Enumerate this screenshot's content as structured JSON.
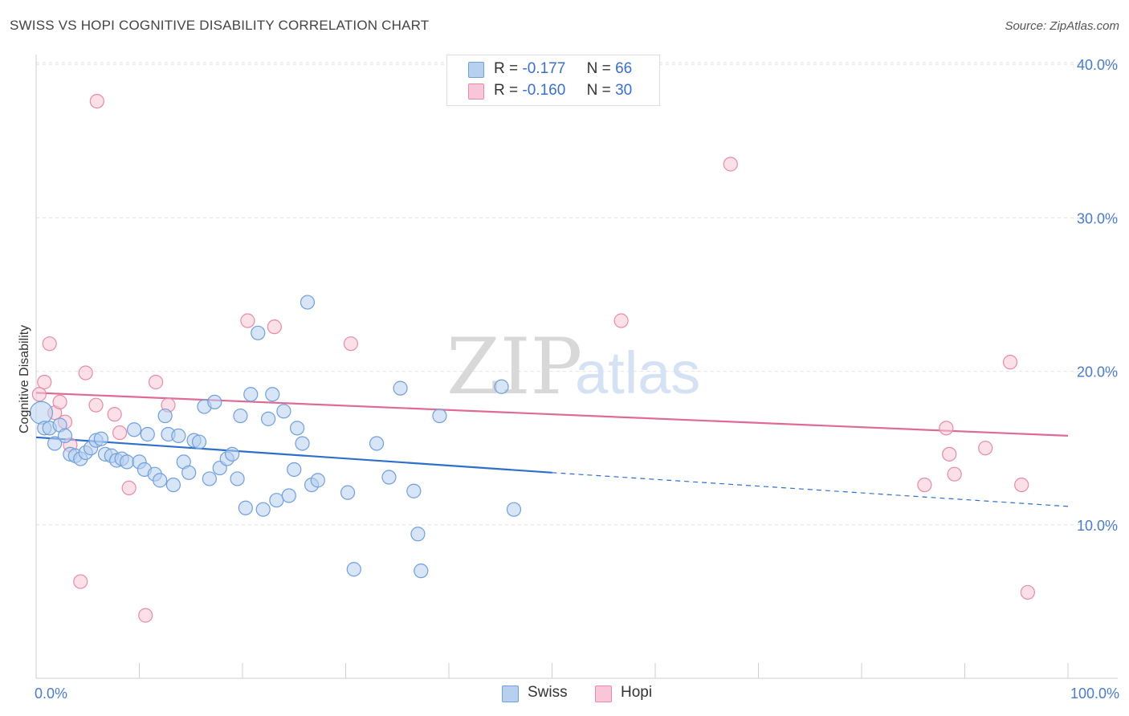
{
  "title": "SWISS VS HOPI COGNITIVE DISABILITY CORRELATION CHART",
  "source": "Source: ZipAtlas.com",
  "watermark": {
    "zip": "ZIP",
    "atlas": "atlas"
  },
  "legend": {
    "rows": [
      {
        "r_label": "R =",
        "r_value": "-0.177",
        "n_label": "N =",
        "n_value": "66"
      },
      {
        "r_label": "R =",
        "r_value": "-0.160",
        "n_label": "N =",
        "n_value": "30"
      }
    ]
  },
  "bottom_legend": {
    "swiss": "Swiss",
    "hopi": "Hopi"
  },
  "colors": {
    "swiss_fill": "#b8d0f0",
    "swiss_stroke": "#6f9fdc",
    "swiss_line": "#2e6fcc",
    "hopi_fill": "#f8c6d6",
    "hopi_stroke": "#e88aaa",
    "hopi_line": "#e06a96",
    "tick_text": "#4a7cc9",
    "grid": "#e2e2e2"
  },
  "chart_data": {
    "type": "scatter",
    "title": "SWISS VS HOPI COGNITIVE DISABILITY CORRELATION CHART",
    "xlabel": "",
    "ylabel": "Cognitive Disability",
    "xlim": [
      0,
      100
    ],
    "ylim": [
      0,
      40
    ],
    "x_tick_labels": [
      "0.0%",
      "100.0%"
    ],
    "y_ticks": [
      10,
      20,
      30,
      40
    ],
    "y_tick_labels": [
      "10.0%",
      "20.0%",
      "30.0%",
      "40.0%"
    ],
    "grid": true,
    "legend_position": "top-center",
    "series": [
      {
        "name": "Swiss",
        "R": -0.177,
        "N": 66,
        "trend": {
          "x": [
            0,
            50.0
          ],
          "y": [
            15.7,
            13.4
          ],
          "dashed_to": [
            100,
            11.2
          ]
        },
        "points": [
          [
            0.5,
            17.3
          ],
          [
            0.8,
            16.3
          ],
          [
            1.3,
            16.3
          ],
          [
            1.8,
            15.3
          ],
          [
            2.3,
            16.5
          ],
          [
            2.8,
            15.8
          ],
          [
            3.3,
            14.6
          ],
          [
            3.8,
            14.5
          ],
          [
            4.3,
            14.3
          ],
          [
            4.8,
            14.7
          ],
          [
            5.3,
            15.0
          ],
          [
            5.8,
            15.5
          ],
          [
            6.3,
            15.6
          ],
          [
            6.7,
            14.6
          ],
          [
            7.3,
            14.5
          ],
          [
            7.8,
            14.2
          ],
          [
            8.3,
            14.3
          ],
          [
            8.8,
            14.1
          ],
          [
            9.5,
            16.2
          ],
          [
            10.0,
            14.1
          ],
          [
            10.5,
            13.6
          ],
          [
            10.8,
            15.9
          ],
          [
            11.5,
            13.3
          ],
          [
            12.0,
            12.9
          ],
          [
            12.5,
            17.1
          ],
          [
            12.8,
            15.9
          ],
          [
            13.3,
            12.6
          ],
          [
            13.8,
            15.8
          ],
          [
            14.3,
            14.1
          ],
          [
            14.8,
            13.4
          ],
          [
            15.3,
            15.5
          ],
          [
            15.8,
            15.4
          ],
          [
            16.3,
            17.7
          ],
          [
            16.8,
            13.0
          ],
          [
            17.3,
            18.0
          ],
          [
            17.8,
            13.7
          ],
          [
            18.5,
            14.3
          ],
          [
            19.0,
            14.6
          ],
          [
            19.5,
            13.0
          ],
          [
            19.8,
            17.1
          ],
          [
            20.3,
            11.1
          ],
          [
            20.8,
            18.5
          ],
          [
            21.5,
            22.5
          ],
          [
            22.0,
            11.0
          ],
          [
            22.5,
            16.9
          ],
          [
            22.9,
            18.5
          ],
          [
            23.3,
            11.6
          ],
          [
            24.0,
            17.4
          ],
          [
            24.5,
            11.9
          ],
          [
            25.0,
            13.6
          ],
          [
            25.3,
            16.3
          ],
          [
            25.8,
            15.3
          ],
          [
            26.3,
            24.5
          ],
          [
            26.7,
            12.6
          ],
          [
            27.3,
            12.9
          ],
          [
            30.2,
            12.1
          ],
          [
            30.8,
            7.1
          ],
          [
            33.0,
            15.3
          ],
          [
            34.2,
            13.1
          ],
          [
            35.3,
            18.9
          ],
          [
            36.6,
            12.2
          ],
          [
            37.0,
            9.4
          ],
          [
            37.3,
            7.0
          ],
          [
            39.1,
            17.1
          ],
          [
            45.1,
            19.0
          ],
          [
            46.3,
            11.0
          ]
        ]
      },
      {
        "name": "Hopi",
        "R": -0.16,
        "N": 30,
        "trend": {
          "x": [
            0,
            100
          ],
          "y": [
            18.6,
            15.8
          ]
        },
        "points": [
          [
            0.3,
            18.5
          ],
          [
            0.8,
            19.3
          ],
          [
            1.3,
            21.8
          ],
          [
            1.8,
            17.3
          ],
          [
            2.3,
            18.0
          ],
          [
            2.8,
            16.7
          ],
          [
            3.3,
            15.2
          ],
          [
            4.3,
            6.3
          ],
          [
            4.8,
            19.9
          ],
          [
            5.8,
            17.8
          ],
          [
            5.9,
            37.6
          ],
          [
            7.6,
            17.2
          ],
          [
            8.1,
            16.0
          ],
          [
            9.0,
            12.4
          ],
          [
            10.6,
            4.1
          ],
          [
            11.6,
            19.3
          ],
          [
            12.8,
            17.8
          ],
          [
            20.5,
            23.3
          ],
          [
            23.1,
            22.9
          ],
          [
            30.5,
            21.8
          ],
          [
            56.7,
            23.3
          ],
          [
            67.3,
            33.5
          ],
          [
            86.1,
            12.6
          ],
          [
            88.2,
            16.3
          ],
          [
            88.5,
            14.6
          ],
          [
            89.0,
            13.3
          ],
          [
            92.0,
            15.0
          ],
          [
            94.4,
            20.6
          ],
          [
            95.5,
            12.6
          ],
          [
            96.1,
            5.6
          ]
        ]
      }
    ]
  }
}
